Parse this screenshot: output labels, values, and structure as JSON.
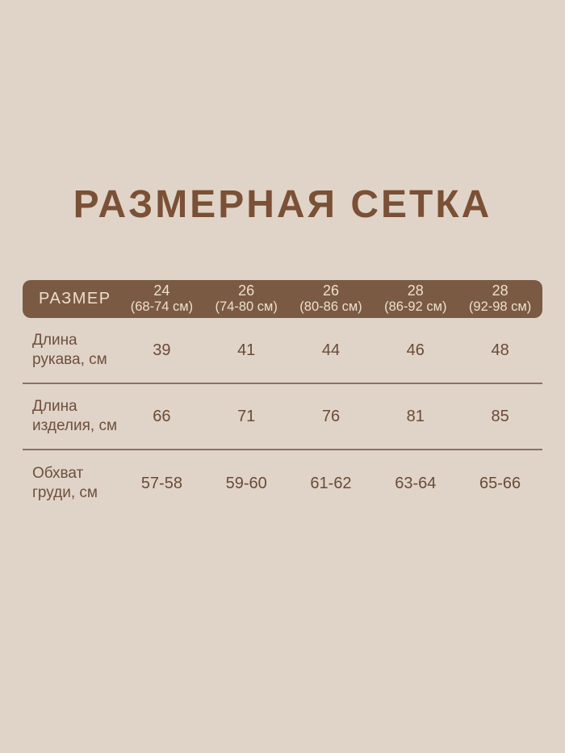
{
  "title": "РАЗМЕРНАЯ СЕТКА",
  "colors": {
    "background": "#e0d4c8",
    "header_bar": "#7b5a43",
    "header_text": "#ede0cd",
    "title_text": "#7a5036",
    "body_text": "#6c4a36",
    "divider": "#8b7265"
  },
  "table": {
    "header": {
      "label": "РАЗМЕР",
      "columns": [
        {
          "size": "24",
          "range": "(68-74 см)"
        },
        {
          "size": "26",
          "range": "(74-80 см)"
        },
        {
          "size": "26",
          "range": "(80-86 см)"
        },
        {
          "size": "28",
          "range": "(86-92 см)"
        },
        {
          "size": "28",
          "range": "(92-98 см)"
        }
      ]
    },
    "rows": [
      {
        "label": "Длина рукава, см",
        "values": [
          "39",
          "41",
          "44",
          "46",
          "48"
        ]
      },
      {
        "label": "Длина изделия, см",
        "values": [
          "66",
          "71",
          "76",
          "81",
          "85"
        ]
      },
      {
        "label": "Обхват груди, см",
        "values": [
          "57-58",
          "59-60",
          "61-62",
          "63-64",
          "65-66"
        ]
      }
    ]
  },
  "chart_data": {
    "type": "table",
    "title": "РАЗМЕРНАЯ СЕТКА",
    "columns": [
      "РАЗМЕР",
      "24 (68-74 см)",
      "26 (74-80 см)",
      "26 (80-86 см)",
      "28 (86-92 см)",
      "28 (92-98 см)"
    ],
    "rows": [
      [
        "Длина рукава, см",
        "39",
        "41",
        "44",
        "46",
        "48"
      ],
      [
        "Длина изделия, см",
        "66",
        "71",
        "76",
        "81",
        "85"
      ],
      [
        "Обхват груди, см",
        "57-58",
        "59-60",
        "61-62",
        "63-64",
        "65-66"
      ]
    ]
  }
}
